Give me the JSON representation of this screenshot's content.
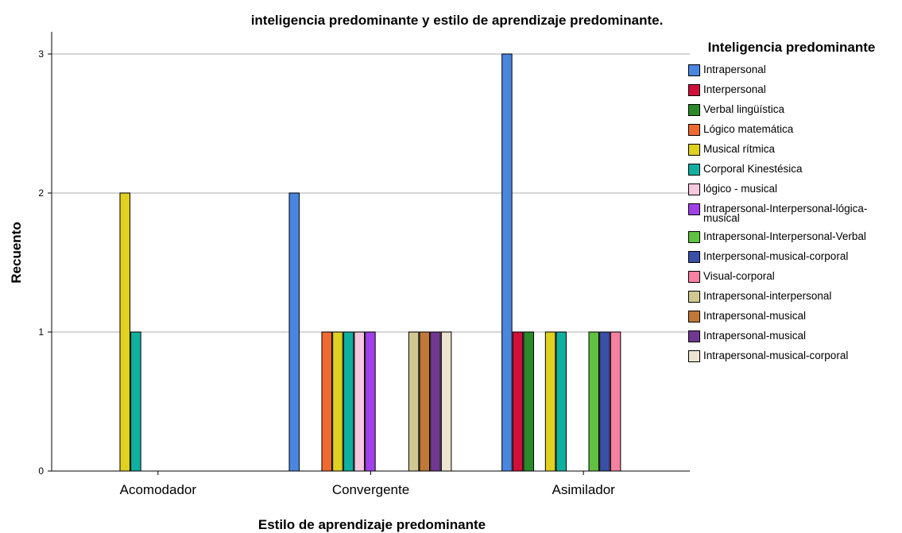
{
  "chart_data": {
    "type": "bar",
    "title": "inteligencia predominante y estilo de aprendizaje predominante.",
    "x_label": "Estilo de aprendizaje predominante",
    "y_label": "Recuento",
    "legend_title": "Inteligencia predominante",
    "categories": [
      "Acomodador",
      "Convergente",
      "Asimilador"
    ],
    "ylim": [
      0,
      3
    ],
    "yticks": [
      0,
      1,
      2,
      3
    ],
    "grid": true,
    "series": [
      {
        "name": "Intrapersonal",
        "color": "#4a86e0",
        "values": [
          0,
          2,
          3
        ]
      },
      {
        "name": "Interpersonal",
        "color": "#d0103a",
        "values": [
          0,
          0,
          1
        ]
      },
      {
        "name": "Verbal lingüística",
        "color": "#2a8a2a",
        "values": [
          0,
          0,
          1
        ]
      },
      {
        "name": "Lógico matemática",
        "color": "#f06a30",
        "values": [
          0,
          1,
          0
        ]
      },
      {
        "name": "Musical rítmica",
        "color": "#e0d020",
        "values": [
          2,
          1,
          1
        ]
      },
      {
        "name": "Corporal Kinestésica",
        "color": "#10b0a0",
        "values": [
          1,
          1,
          1
        ]
      },
      {
        "name": "lógico - musical",
        "color": "#f8c8e0",
        "values": [
          0,
          1,
          0
        ]
      },
      {
        "name": "Intrapersonal-Interpersonal-lógica-musical",
        "color": "#a040e8",
        "values": [
          0,
          1,
          0
        ]
      },
      {
        "name": "Intrapersonal-Interpersonal-Verbal",
        "color": "#60c040",
        "values": [
          0,
          0,
          1
        ]
      },
      {
        "name": "Interpersonal-musical-corporal",
        "color": "#3a50a8",
        "values": [
          0,
          0,
          1
        ]
      },
      {
        "name": "Visual-corporal",
        "color": "#f880a0",
        "values": [
          0,
          0,
          1
        ]
      },
      {
        "name": "Intrapersonal-interpersonal",
        "color": "#d0c890",
        "values": [
          0,
          1,
          0
        ]
      },
      {
        "name": "Intrapersonal-musical",
        "color": "#c07838",
        "values": [
          0,
          1,
          0
        ]
      },
      {
        "name": "Intrapersonal-musical",
        "color": "#703890",
        "values": [
          0,
          1,
          0
        ]
      },
      {
        "name": "Intrapersonal-musical-corporal",
        "color": "#ece4d0",
        "values": [
          0,
          1,
          0
        ]
      }
    ]
  }
}
